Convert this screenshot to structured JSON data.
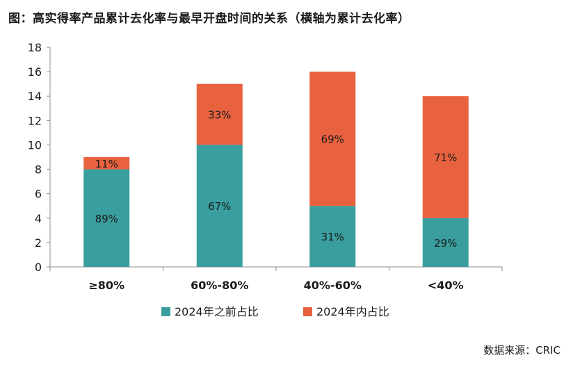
{
  "title": "图：高实得率产品累计去化率与最早开盘时间的关系（横轴为累计去化率）",
  "source": "数据来源：CRIC",
  "colors": {
    "series_1": "#3a9e9e",
    "series_2": "#e8623f",
    "axis": "#8c8c8c"
  },
  "chart_data": {
    "type": "bar",
    "stacked": true,
    "categories": [
      "≥80%",
      "60%-80%",
      "40%-60%",
      "<40%"
    ],
    "series": [
      {
        "name": "2024年之前占比",
        "values": [
          8,
          10,
          5,
          4
        ],
        "labels": [
          "89%",
          "67%",
          "31%",
          "29%"
        ]
      },
      {
        "name": "2024年内占比",
        "values": [
          1,
          5,
          11,
          10
        ],
        "labels": [
          "11%",
          "33%",
          "69%",
          "71%"
        ]
      }
    ],
    "ylim": [
      0,
      18
    ],
    "yticks": [
      0,
      2,
      4,
      6,
      8,
      10,
      12,
      14,
      16,
      18
    ],
    "grid": false,
    "legend_position": "bottom"
  }
}
